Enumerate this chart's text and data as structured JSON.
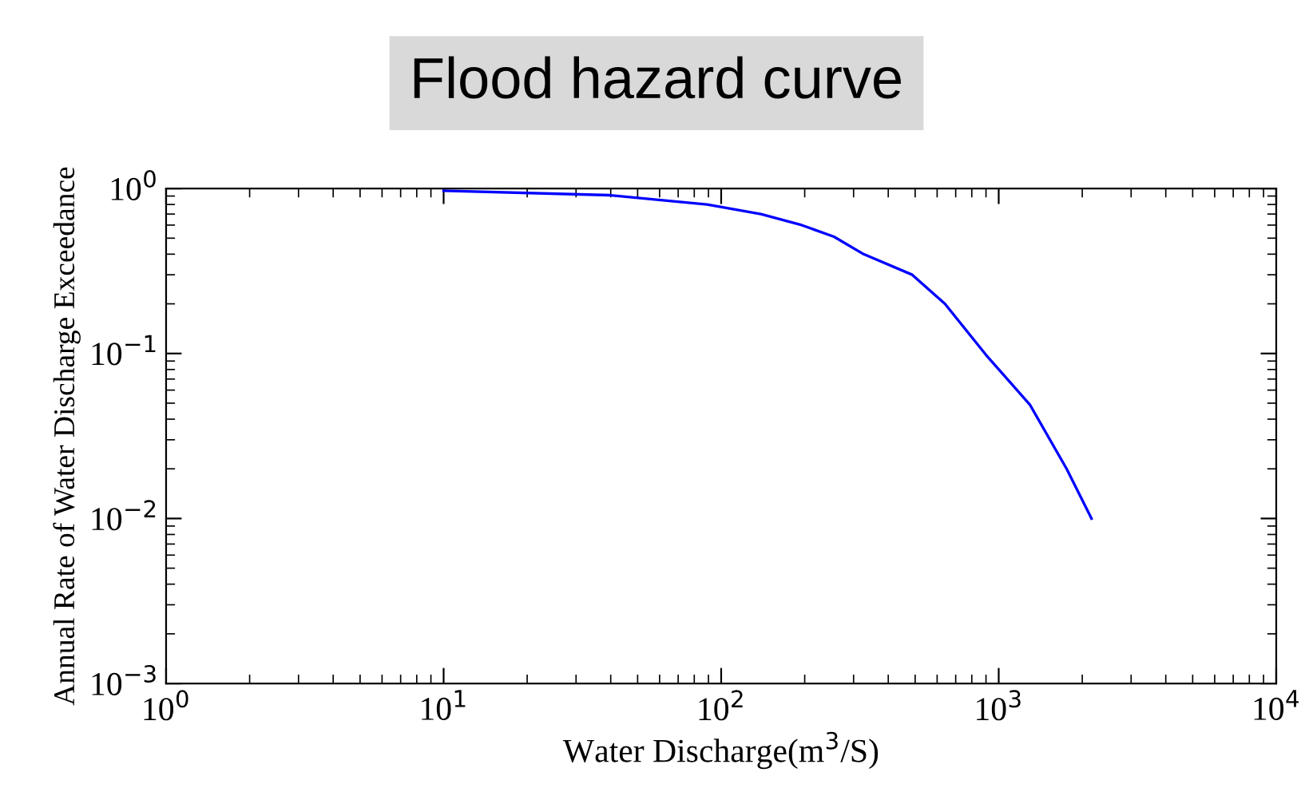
{
  "chart_data": {
    "type": "line",
    "title": "Flood hazard curve",
    "xlabel": "Water Discharge(m$^{3}$/S)",
    "ylabel": "Annual Rate of Water Discharge Exceedance",
    "log": "xy",
    "grid": false,
    "marker": "none",
    "line_style": "solid",
    "xlim": [
      1,
      10000
    ],
    "ylim": [
      0.001,
      1
    ],
    "xticks": [
      {
        "value": 1,
        "label": "10$^{0}$"
      },
      {
        "value": 10,
        "label": "10$^{1}$"
      },
      {
        "value": 100,
        "label": "10$^{2}$"
      },
      {
        "value": 1000,
        "label": "10$^{3}$"
      },
      {
        "value": 10000,
        "label": "10$^{4}$"
      }
    ],
    "yticks": [
      {
        "value": 0.001,
        "label": "10$^{−3}$"
      },
      {
        "value": 0.01,
        "label": "10$^{−2}$"
      },
      {
        "value": 0.1,
        "label": "10$^{−1}$"
      },
      {
        "value": 1,
        "label": "10$^{0}$"
      }
    ],
    "series": [
      {
        "color": "#0000ff",
        "x": [
          10,
          40,
          89,
          139,
          195,
          255,
          326,
          488,
          640,
          900,
          1295,
          1757,
          2160
        ],
        "values": [
          0.97,
          0.91,
          0.8,
          0.7,
          0.6,
          0.51,
          0.4,
          0.3,
          0.2,
          0.098,
          0.049,
          0.02,
          0.01
        ]
      }
    ]
  }
}
